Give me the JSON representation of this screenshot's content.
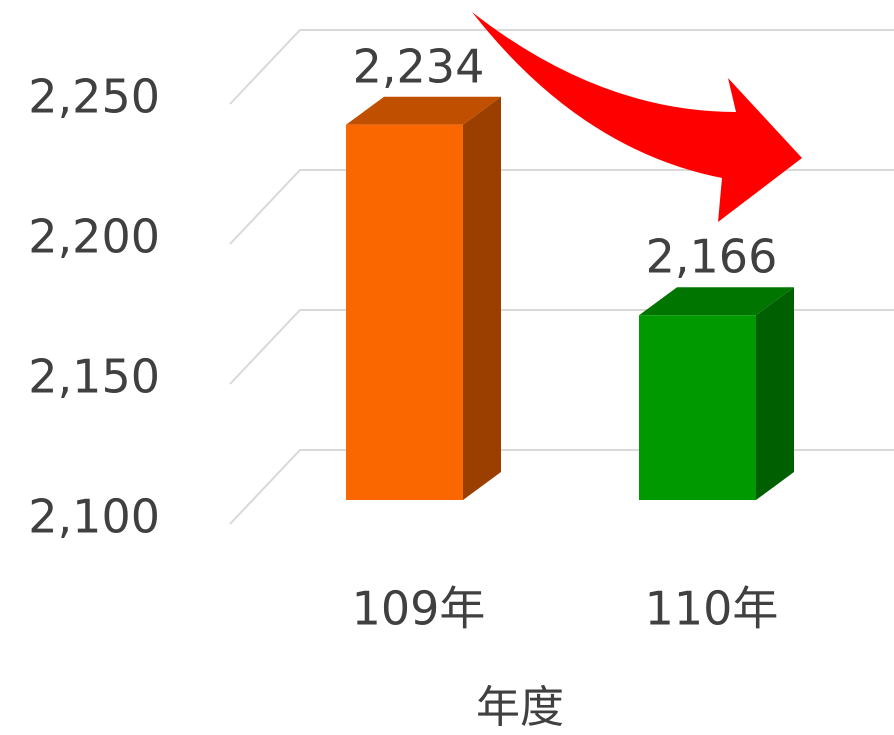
{
  "chart_data": {
    "type": "bar3d",
    "x_label": "年度",
    "categories": [
      "109年",
      "110年"
    ],
    "values": [
      2234,
      2166
    ],
    "value_labels": [
      "2,234",
      "2,166"
    ],
    "colors": [
      "#fa6600",
      "#009900"
    ],
    "ylim": [
      2100,
      2250
    ],
    "yticks": [
      {
        "value": 2100,
        "label": "2,100"
      },
      {
        "value": 2150,
        "label": "2,150"
      },
      {
        "value": 2200,
        "label": "2,200"
      },
      {
        "value": 2250,
        "label": "2,250"
      }
    ],
    "grid": true
  }
}
